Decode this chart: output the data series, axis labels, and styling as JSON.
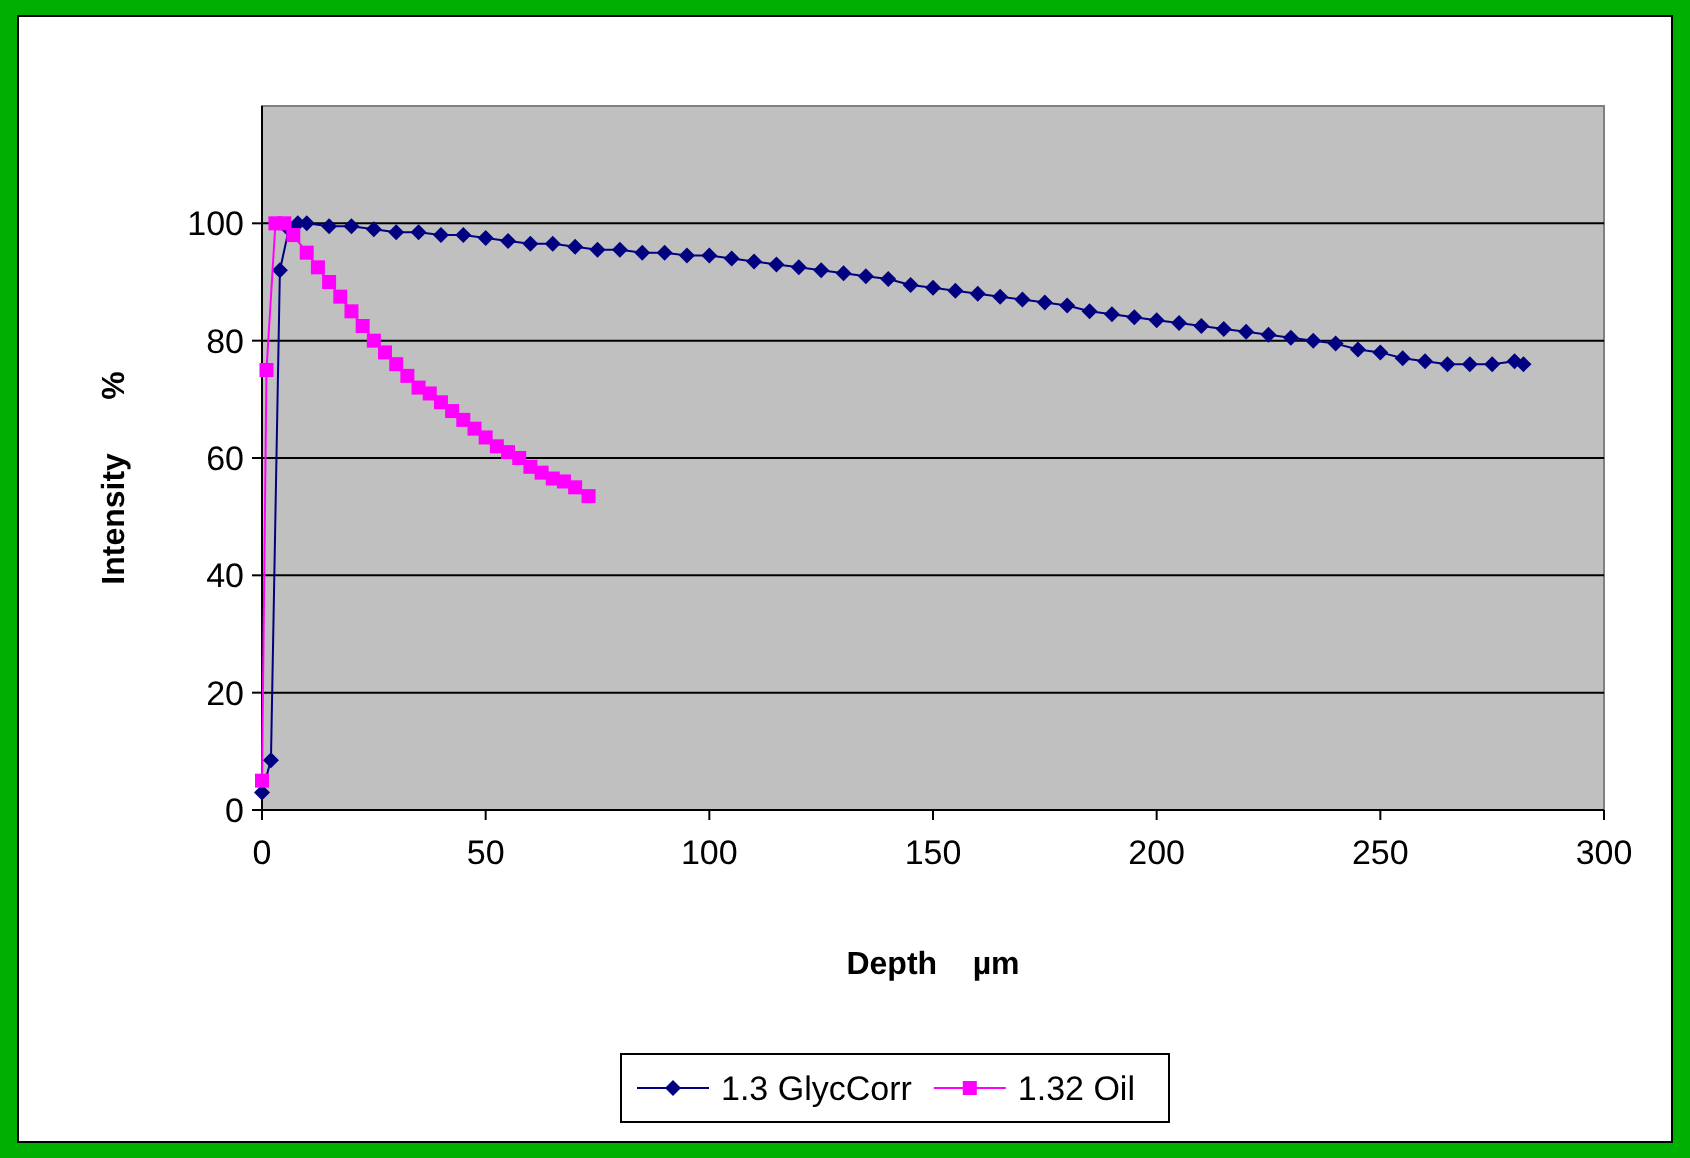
{
  "chart_data": {
    "type": "line",
    "xlabel": "Depth    µm",
    "ylabel": "Intensity      %",
    "xlim": [
      0,
      300
    ],
    "xticks": [
      0,
      50,
      100,
      150,
      200,
      250,
      300
    ],
    "ylim": [
      0,
      120
    ],
    "yticks": [
      0,
      20,
      40,
      60,
      80,
      100
    ],
    "grid": "y",
    "legend": "bottom",
    "series": [
      {
        "name": "1.3 GlycCorr",
        "color": "#000080",
        "marker": "diamond",
        "x": [
          0,
          2,
          4,
          6,
          8,
          10,
          15,
          20,
          25,
          30,
          35,
          40,
          45,
          50,
          55,
          60,
          65,
          70,
          75,
          80,
          85,
          90,
          95,
          100,
          105,
          110,
          115,
          120,
          125,
          130,
          135,
          140,
          145,
          150,
          155,
          160,
          165,
          170,
          175,
          180,
          185,
          190,
          195,
          200,
          205,
          210,
          215,
          220,
          225,
          230,
          235,
          240,
          245,
          250,
          255,
          260,
          265,
          270,
          275,
          280,
          282
        ],
        "values": [
          3,
          8.5,
          92,
          99,
          100,
          100,
          99.5,
          99.5,
          99,
          98.5,
          98.5,
          98,
          98,
          97.5,
          97,
          96.5,
          96.5,
          96,
          95.5,
          95.5,
          95,
          95,
          94.5,
          94.5,
          94,
          93.5,
          93,
          92.5,
          92,
          91.5,
          91,
          90.5,
          89.5,
          89,
          88.5,
          88,
          87.5,
          87,
          86.5,
          86,
          85,
          84.5,
          84,
          83.5,
          83,
          82.5,
          82,
          81.5,
          81,
          80.5,
          80,
          79.5,
          78.5,
          78,
          77,
          76.5,
          76,
          76,
          76,
          76.5,
          76
        ]
      },
      {
        "name": "1.32 Oil",
        "color": "#ff00ff",
        "marker": "square",
        "x": [
          0,
          1,
          3,
          5,
          7,
          10,
          12.5,
          15,
          17.5,
          20,
          22.5,
          25,
          27.5,
          30,
          32.5,
          35,
          37.5,
          40,
          42.5,
          45,
          47.5,
          50,
          52.5,
          55,
          57.5,
          60,
          62.5,
          65,
          67.5,
          70,
          73
        ],
        "values": [
          5,
          75,
          100,
          100,
          98,
          95,
          92.5,
          90,
          87.5,
          85,
          82.5,
          80,
          78,
          76,
          74,
          72,
          71,
          69.5,
          68,
          66.5,
          65,
          63.5,
          62,
          61,
          60,
          58.5,
          57.5,
          56.5,
          56,
          55,
          53.5
        ]
      }
    ]
  }
}
